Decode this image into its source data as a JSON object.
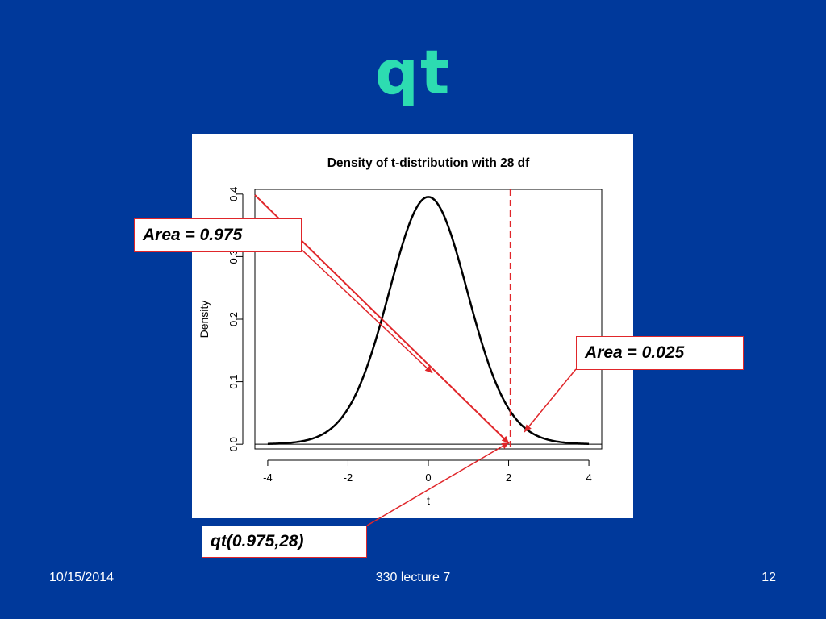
{
  "slide": {
    "title": "qt",
    "footer": {
      "date": "10/15/2014",
      "lecture": "330 lecture 7",
      "page": "12"
    }
  },
  "callouts": {
    "area_975": "Area = 0.975",
    "area_025": "Area = 0.025",
    "qt_call": "qt(0.975,28)"
  },
  "colors": {
    "background": "#00399b",
    "title": "#2ddcb1",
    "annotation": "#e0262a",
    "curve": "#000000"
  },
  "chart_data": {
    "type": "line",
    "title": "Density of t-distribution with 28 df",
    "xlabel": "t",
    "ylabel": "Density",
    "xlim": [
      -4.32,
      4.32
    ],
    "ylim": [
      -0.0075,
      0.4075
    ],
    "xticks": [
      -4,
      -2,
      0,
      2,
      4
    ],
    "yticks": [
      0.0,
      0.1,
      0.2,
      0.3,
      0.4
    ],
    "xtick_labels": [
      "-4",
      "-2",
      "0",
      "2",
      "4"
    ],
    "ytick_labels": [
      "0.0",
      "0.1",
      "0.2",
      "0.3",
      "0.4"
    ],
    "degrees_of_freedom": 28,
    "x_range": [
      -4,
      4
    ],
    "reference_lines": [
      {
        "orientation": "horizontal",
        "value": 0,
        "style": "solid"
      },
      {
        "orientation": "vertical",
        "value": 2.048,
        "style": "dashed"
      }
    ],
    "grid": false
  }
}
